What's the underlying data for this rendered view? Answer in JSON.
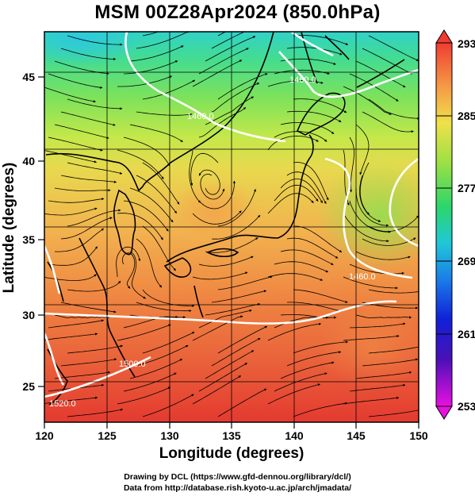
{
  "title": "MSM 00Z28Apr2024 (850.0hPa)",
  "x_axis": {
    "label": "Longitude (degrees)",
    "ticks": [
      "120",
      "125",
      "130",
      "135",
      "140",
      "145",
      "150"
    ]
  },
  "y_axis": {
    "label": "Latitude  (degrees)",
    "ticks": [
      "25",
      "30",
      "35",
      "40",
      "45"
    ]
  },
  "colorbar": {
    "ticks": [
      "293",
      "285",
      "277",
      "269",
      "261",
      "253"
    ]
  },
  "contour_labels": [
    "1460.0",
    "1460.0",
    "1460.0",
    "1500.0",
    "1520.0"
  ],
  "credits": {
    "line1": "Drawing by DCL (https://www.gfd-dennou.org/library/dcl/)",
    "line2": "Data from http://database.rish.kyoto-u.ac.jp/arch/jmadata/"
  },
  "map_data": {
    "lon_range": [
      120,
      150
    ],
    "lat_range": [
      22.4,
      47.6
    ],
    "field": "temperature (K) with streamlines and geopotential height contours",
    "color_range": [
      253,
      293
    ]
  }
}
